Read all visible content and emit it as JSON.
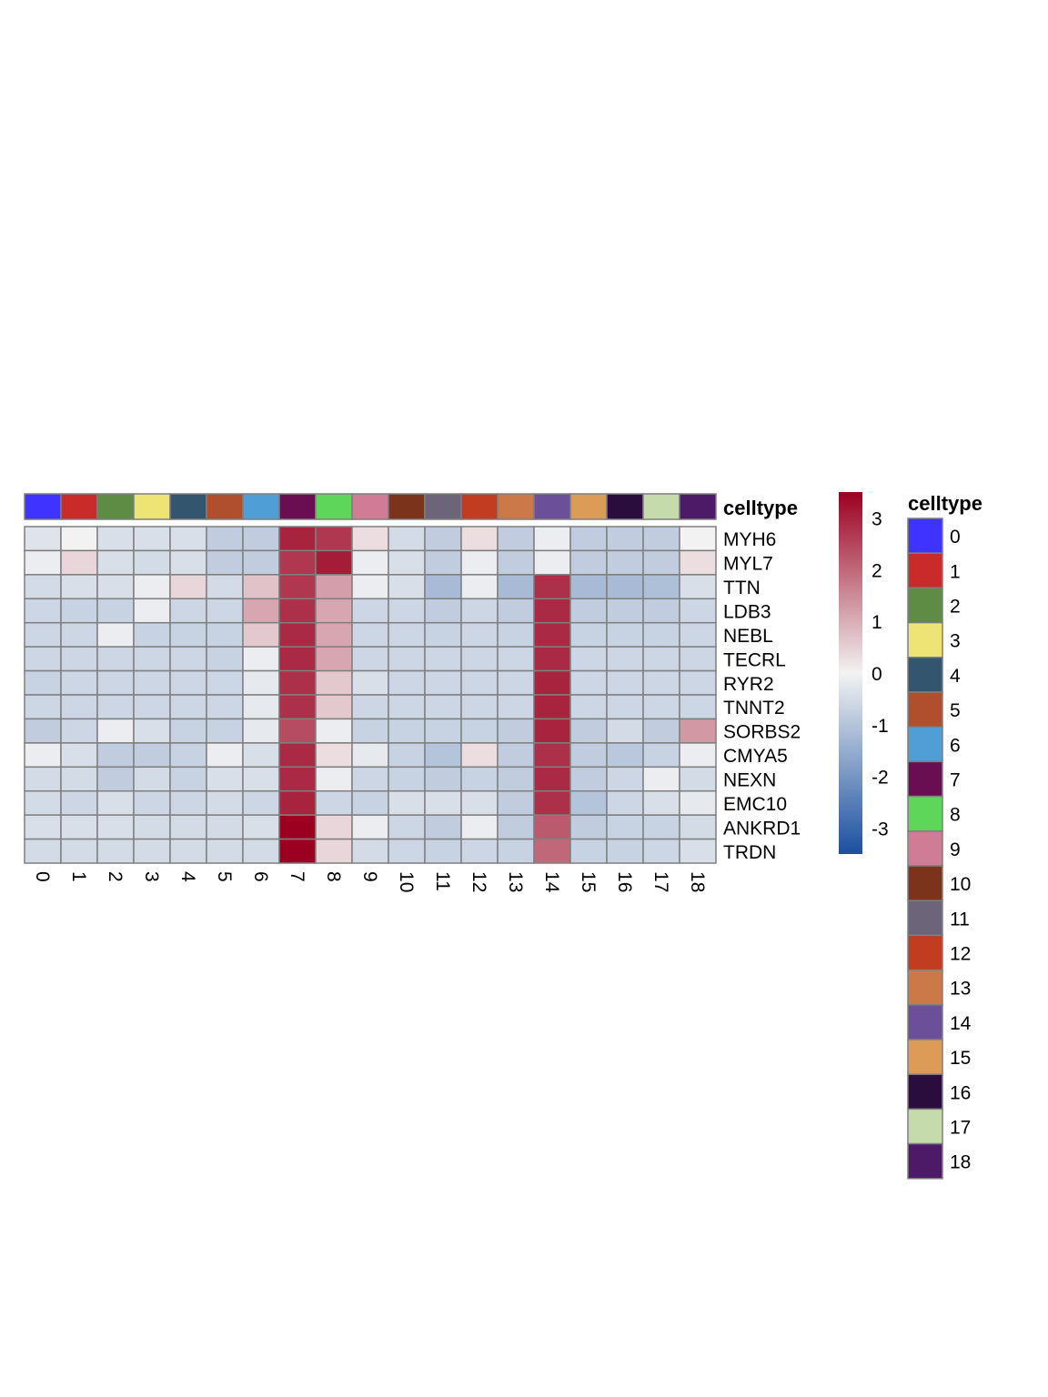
{
  "chart_data": {
    "type": "heatmap",
    "annotation_name": "celltype",
    "legend_title": "celltype",
    "columns": [
      "0",
      "1",
      "2",
      "3",
      "4",
      "5",
      "6",
      "7",
      "8",
      "9",
      "10",
      "11",
      "12",
      "13",
      "14",
      "15",
      "16",
      "17",
      "18"
    ],
    "rows": [
      "MYH6",
      "MYL7",
      "TTN",
      "LDB3",
      "NEBL",
      "TECRL",
      "RYR2",
      "TNNT2",
      "SORBS2",
      "CMYA5",
      "NEXN",
      "EMC10",
      "ANKRD1",
      "TRDN"
    ],
    "values": [
      [
        -0.3,
        0.0,
        -0.4,
        -0.4,
        -0.4,
        -0.8,
        -0.8,
        3.0,
        2.7,
        0.3,
        -0.5,
        -0.8,
        0.3,
        -0.8,
        -0.1,
        -0.8,
        -0.8,
        -0.8,
        0.0
      ],
      [
        -0.1,
        0.4,
        -0.4,
        -0.5,
        -0.4,
        -0.8,
        -0.8,
        2.7,
        3.1,
        -0.1,
        -0.4,
        -0.8,
        -0.1,
        -0.8,
        -0.1,
        -0.8,
        -0.8,
        -0.8,
        0.3
      ],
      [
        -0.5,
        -0.4,
        -0.4,
        -0.1,
        0.4,
        -0.5,
        0.7,
        2.7,
        1.2,
        -0.1,
        -0.4,
        -1.2,
        -0.1,
        -1.2,
        2.8,
        -1.2,
        -1.2,
        -1.1,
        -0.4
      ],
      [
        -0.6,
        -0.7,
        -0.7,
        -0.1,
        -0.6,
        -0.6,
        1.1,
        2.8,
        1.1,
        -0.6,
        -0.6,
        -0.8,
        -0.6,
        -0.8,
        2.9,
        -0.8,
        -0.8,
        -0.8,
        -0.6
      ],
      [
        -0.6,
        -0.6,
        -0.1,
        -0.7,
        -0.7,
        -0.7,
        0.6,
        2.9,
        1.1,
        -0.6,
        -0.6,
        -0.7,
        -0.6,
        -0.7,
        2.9,
        -0.7,
        -0.7,
        -0.7,
        -0.6
      ],
      [
        -0.6,
        -0.6,
        -0.6,
        -0.6,
        -0.6,
        -0.7,
        -0.1,
        2.9,
        1.1,
        -0.6,
        -0.6,
        -0.6,
        -0.6,
        -0.6,
        2.9,
        -0.6,
        -0.6,
        -0.6,
        -0.6
      ],
      [
        -0.7,
        -0.6,
        -0.6,
        -0.6,
        -0.6,
        -0.6,
        -0.2,
        2.8,
        0.6,
        -0.4,
        -0.6,
        -0.6,
        -0.6,
        -0.6,
        3.0,
        -0.6,
        -0.6,
        -0.6,
        -0.6
      ],
      [
        -0.6,
        -0.6,
        -0.6,
        -0.6,
        -0.6,
        -0.6,
        -0.2,
        2.8,
        0.6,
        -0.6,
        -0.6,
        -0.6,
        -0.6,
        -0.6,
        3.0,
        -0.6,
        -0.6,
        -0.6,
        -0.6
      ],
      [
        -0.8,
        -0.6,
        -0.1,
        -0.4,
        -0.7,
        -0.7,
        -0.2,
        2.4,
        -0.1,
        -0.7,
        -0.7,
        -0.7,
        -0.7,
        -0.8,
        3.0,
        -0.8,
        -0.5,
        -0.8,
        1.3
      ],
      [
        -0.1,
        -0.4,
        -0.8,
        -0.8,
        -0.7,
        -0.1,
        -0.4,
        2.9,
        0.3,
        -0.2,
        -0.7,
        -1.0,
        0.3,
        -0.8,
        2.8,
        -0.8,
        -0.9,
        -0.7,
        -0.1
      ],
      [
        -0.5,
        -0.5,
        -0.8,
        -0.5,
        -0.7,
        -0.4,
        -0.4,
        2.9,
        -0.1,
        -0.6,
        -0.7,
        -0.8,
        -0.7,
        -0.8,
        2.9,
        -0.8,
        -0.6,
        -0.1,
        -0.5
      ],
      [
        -0.5,
        -0.6,
        -0.4,
        -0.6,
        -0.6,
        -0.5,
        -0.6,
        3.0,
        -0.6,
        -0.7,
        -0.4,
        -0.4,
        -0.4,
        -0.8,
        2.8,
        -1.0,
        -0.6,
        -0.4,
        -0.2
      ],
      [
        -0.4,
        -0.4,
        -0.4,
        -0.5,
        -0.5,
        -0.5,
        -0.4,
        3.5,
        0.4,
        -0.1,
        -0.6,
        -0.8,
        -0.1,
        -0.8,
        2.2,
        -0.8,
        -0.7,
        -0.7,
        -0.5
      ],
      [
        -0.5,
        -0.5,
        -0.5,
        -0.5,
        -0.5,
        -0.5,
        -0.5,
        3.5,
        0.4,
        -0.5,
        -0.6,
        -0.7,
        -0.6,
        -0.7,
        2.0,
        -0.7,
        -0.7,
        -0.6,
        -0.4
      ]
    ],
    "celltype_colors": [
      "#3f33ff",
      "#c92a2a",
      "#5e8c45",
      "#ede476",
      "#33556e",
      "#b04f2d",
      "#4f9fd6",
      "#6a0e52",
      "#5ed65a",
      "#d07c96",
      "#7b331b",
      "#6c6479",
      "#c13c21",
      "#cc794a",
      "#6b4f99",
      "#dc9c57",
      "#2a0d3c",
      "#c5dbac",
      "#4c1a66"
    ],
    "color_scale": {
      "min": -3.5,
      "max": 3.5,
      "ticks": [
        "3",
        "2",
        "1",
        "0",
        "-1",
        "-2",
        "-3"
      ],
      "low_color": "#1a50a0",
      "mid_color": "#f2f2f2",
      "high_color": "#9b0020"
    },
    "cell_border_color": "#7f7f7f"
  }
}
